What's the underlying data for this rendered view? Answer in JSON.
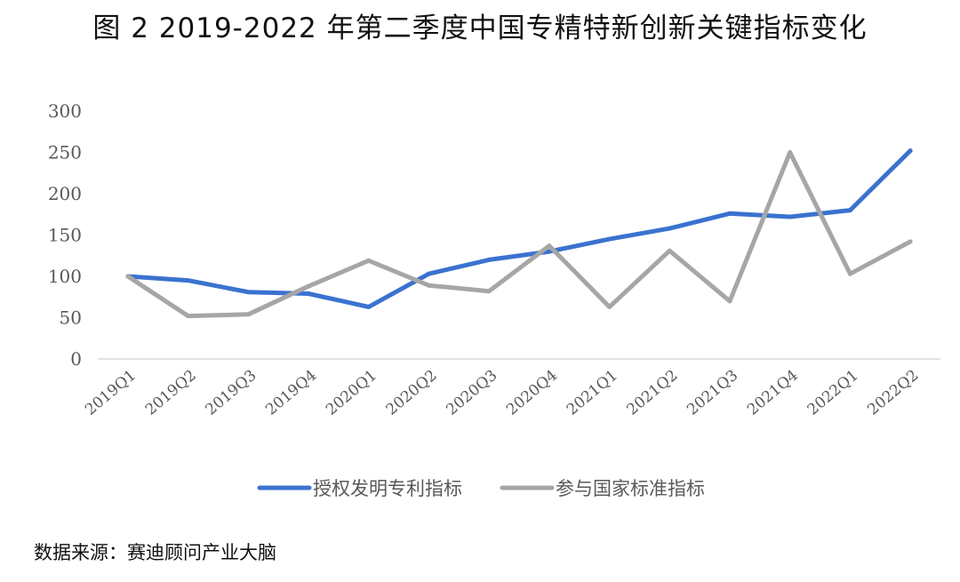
{
  "chart_data": {
    "type": "line",
    "title": "图 2 2019-2022 年第二季度中国专精特新创新关键指标变化",
    "categories": [
      "2019Q1",
      "2019Q2",
      "2019Q3",
      "2019Q4",
      "2020Q1",
      "2020Q2",
      "2020Q3",
      "2020Q4",
      "2021Q1",
      "2021Q2",
      "2021Q3",
      "2021Q4",
      "2022Q1",
      "2022Q2"
    ],
    "series": [
      {
        "name": "授权发明专利指标",
        "color": "#3a72cf",
        "values": [
          100,
          95,
          81,
          79,
          63,
          103,
          120,
          130,
          145,
          158,
          176,
          172,
          180,
          252
        ]
      },
      {
        "name": "参与国家标准指标",
        "color": "#a6a6a6",
        "values": [
          100,
          52,
          54,
          88,
          119,
          89,
          82,
          137,
          63,
          131,
          70,
          250,
          103,
          142
        ]
      }
    ],
    "yticks": [
      0,
      50,
      100,
      150,
      200,
      250,
      300
    ],
    "ylim": [
      0,
      300
    ],
    "xlabel": "",
    "ylabel": "",
    "grid": false,
    "legend_position": "bottom",
    "source": "数据来源：赛迪顾问产业大脑"
  }
}
